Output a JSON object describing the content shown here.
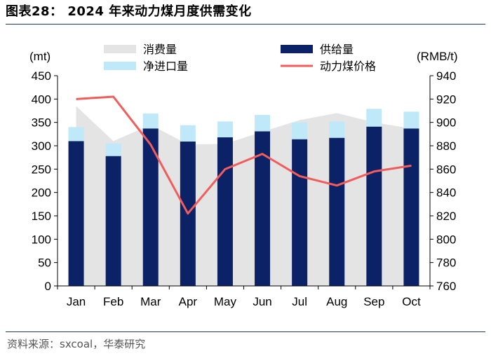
{
  "title": "图表28：  2024 年来动力煤月度供需变化",
  "source": "资料来源：sxcoal，华泰研究",
  "colors": {
    "consumption": "#e4e4e4",
    "net_import": "#bfe8f8",
    "supply": "#0c2266",
    "price": "#f25c5c",
    "axis": "#000000",
    "rule": "#1f3a5f"
  },
  "chart_data": {
    "type": "bar",
    "categories": [
      "Jan",
      "Feb",
      "Mar",
      "Apr",
      "May",
      "Jun",
      "Jul",
      "Aug",
      "Sep",
      "Oct"
    ],
    "left_axis": {
      "label": "(mt)",
      "ylim": [
        0,
        450
      ],
      "ticks": [
        0,
        50,
        100,
        150,
        200,
        250,
        300,
        350,
        400,
        450
      ]
    },
    "right_axis": {
      "label": "(RMB/t)",
      "ylim": [
        760,
        940
      ],
      "ticks": [
        760,
        780,
        800,
        820,
        840,
        860,
        880,
        900,
        920,
        940
      ]
    },
    "grid": false,
    "legend_position": "top",
    "series": [
      {
        "name": "消费量",
        "kind": "area",
        "axis": "left",
        "values": [
          385,
          310,
          345,
          303,
          304,
          330,
          355,
          370,
          350,
          337
        ]
      },
      {
        "name": "供给量",
        "kind": "bar-stack-base",
        "axis": "left",
        "values": [
          310,
          278,
          337,
          309,
          318,
          331,
          314,
          317,
          341,
          337
        ]
      },
      {
        "name": "净进口量",
        "kind": "bar-stack-top",
        "axis": "left",
        "values": [
          30,
          27,
          32,
          35,
          34,
          35,
          36,
          35,
          38,
          36
        ]
      },
      {
        "name": "动力煤价格",
        "kind": "line",
        "axis": "right",
        "values": [
          920,
          922,
          881,
          822,
          860,
          873,
          854,
          846,
          858,
          863
        ]
      }
    ]
  }
}
